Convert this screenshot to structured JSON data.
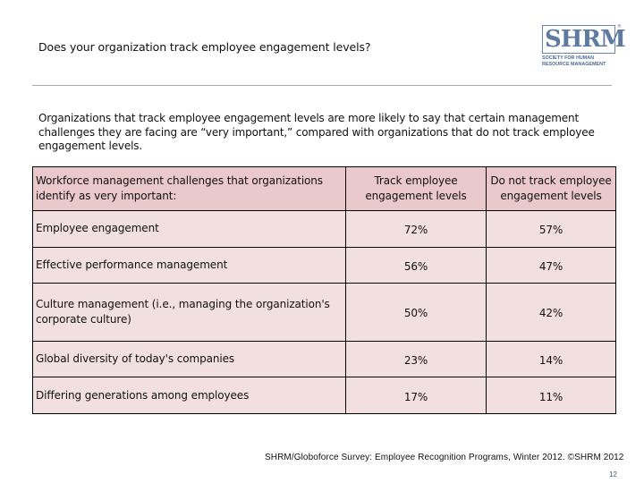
{
  "slide": {
    "title": "Does your organization track employee engagement levels?",
    "intro": "Organizations that track employee engagement levels are more likely to say that certain management challenges they are facing are “very important,” compared with organizations that do not track employee engagement levels."
  },
  "logo": {
    "word": "SHRM",
    "registered": "®",
    "line1": "SOCIETY FOR HUMAN",
    "line2": "RESOURCE MANAGEMENT",
    "color": "#5f7aa0"
  },
  "table": {
    "headers": [
      "Workforce management challenges that organizations identify as very important:",
      "Track employee engagement levels",
      "Do not track employee engagement levels"
    ],
    "rows": [
      {
        "label": "Employee engagement",
        "track": "72%",
        "no_track": "57%"
      },
      {
        "label": "Effective performance management",
        "track": "56%",
        "no_track": "47%"
      },
      {
        "label": "Culture management (i.e., managing the organization's corporate culture)",
        "track": "50%",
        "no_track": "42%"
      },
      {
        "label": "Global diversity of today's companies",
        "track": "23%",
        "no_track": "14%"
      },
      {
        "label": "Differing generations among employees",
        "track": "17%",
        "no_track": "11%"
      }
    ],
    "header_color": "#ebc8cb",
    "row_color": "#f2e0e1"
  },
  "footer": {
    "source": "SHRM/Globoforce Survey: Employee Recognition Programs, Winter 2012. ©SHRM 2012",
    "page_number": "12"
  }
}
